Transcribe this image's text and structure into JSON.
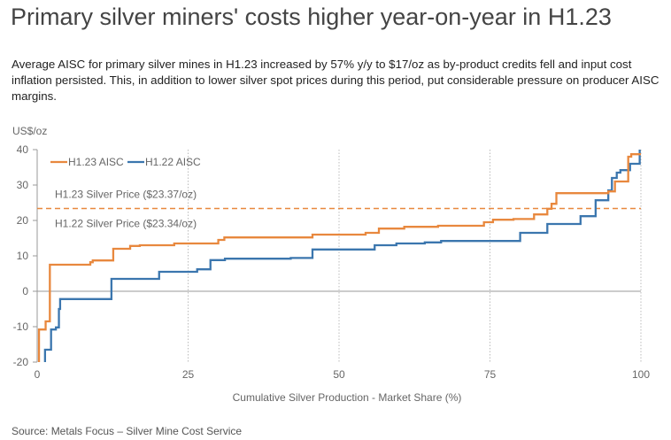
{
  "title": "Primary silver miners' costs higher year-on-year in H1.23",
  "subtitle": "Average AISC for primary silver mines in H1.23 increased by 57% y/y to $17/oz as by-product credits fell and input cost inflation persisted. This, in addition to lower silver spot prices during this period, put considerable pressure on producer AISC margins.",
  "source": "Source: Metals Focus – Silver Mine Cost Service",
  "chart_data": {
    "type": "line",
    "step": true,
    "xlabel": "Cumulative Silver Production - Market Share (%)",
    "ylabel": "US$/oz",
    "xlim": [
      0,
      100
    ],
    "ylim": [
      -20,
      40
    ],
    "xticks": [
      "0",
      "25",
      "50",
      "75",
      "100"
    ],
    "yticks": [
      "-20",
      "-10",
      "0",
      "10",
      "20",
      "30",
      "40"
    ],
    "grid": "vertical dotted",
    "legend": "top-left",
    "colors": {
      "H1.23 AISC": "#e8883e",
      "H1.22 AISC": "#3b76ae"
    },
    "series": [
      {
        "name": "H1.23 AISC",
        "points": [
          [
            0.3,
            -20
          ],
          [
            0.3,
            -10.8
          ],
          [
            1.4,
            -8.5
          ],
          [
            2.1,
            7.5
          ],
          [
            8.8,
            8.2
          ],
          [
            9.2,
            8.7
          ],
          [
            12.6,
            12
          ],
          [
            15.4,
            12.8
          ],
          [
            17,
            13
          ],
          [
            22.7,
            13.5
          ],
          [
            30,
            14.5
          ],
          [
            31,
            15.2
          ],
          [
            45.6,
            16
          ],
          [
            54.4,
            16.5
          ],
          [
            56.6,
            17.7
          ],
          [
            60.8,
            18.2
          ],
          [
            66.4,
            18.5
          ],
          [
            74,
            19.5
          ],
          [
            75.5,
            20.2
          ],
          [
            78.9,
            20.4
          ],
          [
            82.3,
            21.7
          ],
          [
            84.5,
            23.3
          ],
          [
            85.2,
            24.7
          ],
          [
            86,
            27.7
          ],
          [
            94.6,
            28.2
          ],
          [
            95.7,
            31
          ],
          [
            97.9,
            38
          ],
          [
            98.4,
            38.7
          ],
          [
            100,
            38.7
          ]
        ]
      },
      {
        "name": "H1.22 AISC",
        "points": [
          [
            1.3,
            -20
          ],
          [
            1.3,
            -16.5
          ],
          [
            2.3,
            -10.8
          ],
          [
            3.1,
            -10.2
          ],
          [
            3.6,
            -5
          ],
          [
            3.8,
            -2.2
          ],
          [
            12.3,
            3.5
          ],
          [
            20.2,
            5.5
          ],
          [
            26.5,
            6.2
          ],
          [
            28.7,
            8.8
          ],
          [
            31.1,
            9.2
          ],
          [
            42,
            9.4
          ],
          [
            45.6,
            11.8
          ],
          [
            55.9,
            13
          ],
          [
            59.5,
            13.5
          ],
          [
            64.2,
            13.8
          ],
          [
            66.9,
            14.2
          ],
          [
            80,
            16.5
          ],
          [
            84.5,
            19
          ],
          [
            90,
            21.2
          ],
          [
            92.5,
            25.7
          ],
          [
            94.6,
            28.5
          ],
          [
            95.2,
            32
          ],
          [
            96,
            33.5
          ],
          [
            96.6,
            34.2
          ],
          [
            98.2,
            36
          ],
          [
            99.8,
            40
          ]
        ]
      }
    ],
    "annotations": [
      {
        "text": "H1.23 Silver Price ($23.37/oz)",
        "value": 23.37
      },
      {
        "text": "H1.22 Silver Price ($23.34/oz)",
        "value": 23.34
      }
    ]
  }
}
